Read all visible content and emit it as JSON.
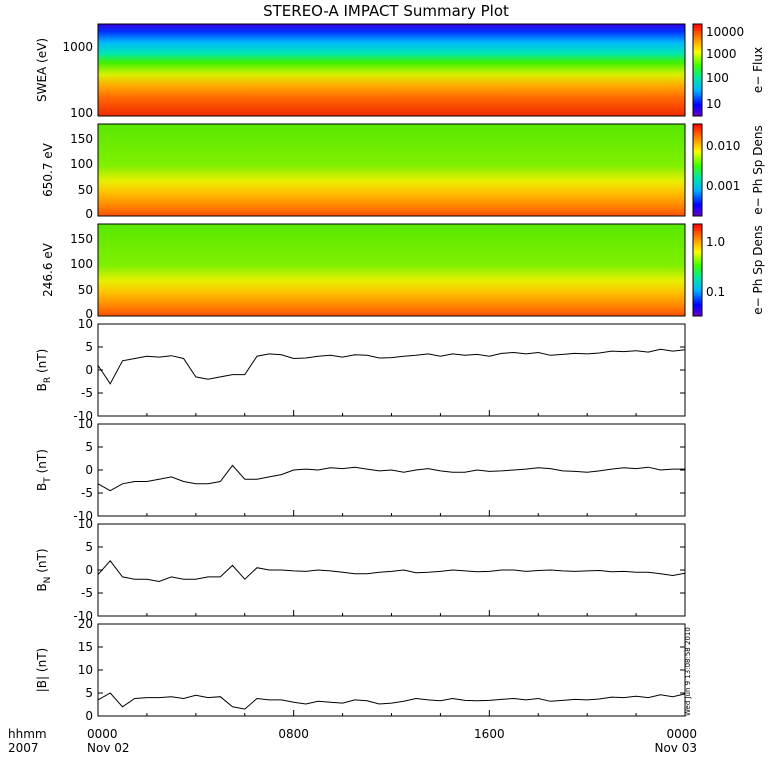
{
  "title": "STEREO-A IMPACT Summary Plot",
  "timestamp": "Wed Jun  9 13:08:58 2010",
  "footer": {
    "units_label": "hhmm",
    "year_label": "2007",
    "x_ticks": [
      {
        "label": "0000",
        "date": "Nov 02",
        "hours": 0
      },
      {
        "label": "0800",
        "date": "",
        "hours": 8
      },
      {
        "label": "1600",
        "date": "",
        "hours": 16
      },
      {
        "label": "0000",
        "date": "Nov 03",
        "hours": 24
      }
    ]
  },
  "colorbars": [
    {
      "label": "e− Flux",
      "ticks": [
        "10000",
        "1000",
        "100",
        "10"
      ]
    },
    {
      "label": "e− Ph Sp Dens",
      "ticks": [
        "0.010",
        "0.001"
      ]
    },
    {
      "label": "e− Ph Sp Dens",
      "ticks": [
        "1.0",
        "0.1"
      ]
    }
  ],
  "spectrograms": [
    {
      "ylabel": "SWEA (eV)",
      "yticks": [
        "1000",
        "100"
      ],
      "scale": "log"
    },
    {
      "ylabel": "650.7 eV",
      "yticks": [
        "150",
        "100",
        "50",
        "0"
      ],
      "ylim": [
        0,
        180
      ]
    },
    {
      "ylabel": "246.6 eV",
      "yticks": [
        "150",
        "100",
        "50",
        "0"
      ],
      "ylim": [
        0,
        180
      ]
    }
  ],
  "chart_data": [
    {
      "type": "line",
      "ylabel": "B",
      "ylabel_sub": "R",
      "ylabel_unit": "(nT)",
      "ylim": [
        -10,
        10
      ],
      "yticks": [
        10,
        5,
        0,
        -5,
        -10
      ],
      "x": [
        0,
        0.5,
        1,
        1.5,
        2,
        2.5,
        3,
        3.5,
        4,
        4.5,
        5,
        5.5,
        6,
        6.5,
        7,
        7.5,
        8,
        8.5,
        9,
        9.5,
        10,
        10.5,
        11,
        11.5,
        12,
        12.5,
        13,
        13.5,
        14,
        14.5,
        15,
        15.5,
        16,
        16.5,
        17,
        17.5,
        18,
        18.5,
        19,
        19.5,
        20,
        20.5,
        21,
        21.5,
        22,
        22.5,
        23,
        23.5,
        24
      ],
      "y": [
        1,
        -3,
        2,
        2.5,
        3,
        2.8,
        3.1,
        2.5,
        -1.5,
        -2,
        -1.5,
        -1,
        -1,
        3,
        3.5,
        3.3,
        2.5,
        2.6,
        3,
        3.2,
        2.8,
        3.3,
        3.2,
        2.6,
        2.7,
        3,
        3.2,
        3.5,
        3,
        3.5,
        3.2,
        3.4,
        3,
        3.6,
        3.8,
        3.5,
        3.8,
        3.2,
        3.4,
        3.6,
        3.5,
        3.7,
        4.1,
        4,
        4.2,
        3.9,
        4.5,
        4.1,
        4.4
      ]
    },
    {
      "type": "line",
      "ylabel": "B",
      "ylabel_sub": "T",
      "ylabel_unit": "(nT)",
      "ylim": [
        -10,
        10
      ],
      "yticks": [
        10,
        5,
        0,
        -5,
        -10
      ],
      "x": [
        0,
        0.5,
        1,
        1.5,
        2,
        2.5,
        3,
        3.5,
        4,
        4.5,
        5,
        5.5,
        6,
        6.5,
        7,
        7.5,
        8,
        8.5,
        9,
        9.5,
        10,
        10.5,
        11,
        11.5,
        12,
        12.5,
        13,
        13.5,
        14,
        14.5,
        15,
        15.5,
        16,
        16.5,
        17,
        17.5,
        18,
        18.5,
        19,
        19.5,
        20,
        20.5,
        21,
        21.5,
        22,
        22.5,
        23,
        23.5,
        24
      ],
      "y": [
        -3,
        -4.5,
        -3,
        -2.5,
        -2.5,
        -2,
        -1.5,
        -2.5,
        -3,
        -3,
        -2.5,
        1,
        -2,
        -2,
        -1.5,
        -1,
        0,
        0.2,
        0,
        0.5,
        0.3,
        0.6,
        0.2,
        -0.2,
        0,
        -0.5,
        0,
        0.3,
        -0.2,
        -0.5,
        -0.5,
        0,
        -0.3,
        -0.2,
        0,
        0.2,
        0.5,
        0.3,
        -0.2,
        -0.3,
        -0.5,
        -0.2,
        0.2,
        0.5,
        0.3,
        0.6,
        0,
        0.2,
        0.2
      ]
    },
    {
      "type": "line",
      "ylabel": "B",
      "ylabel_sub": "N",
      "ylabel_unit": "(nT)",
      "ylim": [
        -10,
        10
      ],
      "yticks": [
        10,
        5,
        0,
        -5,
        -10
      ],
      "x": [
        0,
        0.5,
        1,
        1.5,
        2,
        2.5,
        3,
        3.5,
        4,
        4.5,
        5,
        5.5,
        6,
        6.5,
        7,
        7.5,
        8,
        8.5,
        9,
        9.5,
        10,
        10.5,
        11,
        11.5,
        12,
        12.5,
        13,
        13.5,
        14,
        14.5,
        15,
        15.5,
        16,
        16.5,
        17,
        17.5,
        18,
        18.5,
        19,
        19.5,
        20,
        20.5,
        21,
        21.5,
        22,
        22.5,
        23,
        23.5,
        24
      ],
      "y": [
        -1,
        2,
        -1.5,
        -2,
        -2,
        -2.5,
        -1.5,
        -2,
        -2,
        -1.5,
        -1.5,
        1,
        -2,
        0.5,
        0,
        0,
        -0.2,
        -0.3,
        0,
        -0.2,
        -0.5,
        -0.8,
        -0.8,
        -0.5,
        -0.3,
        0,
        -0.6,
        -0.5,
        -0.3,
        0,
        -0.2,
        -0.4,
        -0.3,
        0,
        0,
        -0.3,
        -0.1,
        0,
        -0.2,
        -0.3,
        -0.2,
        -0.1,
        -0.4,
        -0.3,
        -0.5,
        -0.5,
        -0.8,
        -1.2,
        -0.7
      ]
    },
    {
      "type": "line",
      "ylabel": "|B|",
      "ylabel_sub": "",
      "ylabel_unit": "(nT)",
      "ylim": [
        0,
        20
      ],
      "yticks": [
        20,
        15,
        10,
        5,
        0
      ],
      "x": [
        0,
        0.5,
        1,
        1.5,
        2,
        2.5,
        3,
        3.5,
        4,
        4.5,
        5,
        5.5,
        6,
        6.5,
        7,
        7.5,
        8,
        8.5,
        9,
        9.5,
        10,
        10.5,
        11,
        11.5,
        12,
        12.5,
        13,
        13.5,
        14,
        14.5,
        15,
        15.5,
        16,
        16.5,
        17,
        17.5,
        18,
        18.5,
        19,
        19.5,
        20,
        20.5,
        21,
        21.5,
        22,
        22.5,
        23,
        23.5,
        24
      ],
      "y": [
        3.5,
        5,
        2,
        3.8,
        4,
        4,
        4.2,
        3.8,
        4.5,
        4,
        4.2,
        2,
        1.5,
        3.8,
        3.5,
        3.5,
        3,
        2.6,
        3.2,
        3,
        2.8,
        3.5,
        3.3,
        2.6,
        2.8,
        3.2,
        3.8,
        3.5,
        3.3,
        3.8,
        3.4,
        3.3,
        3.4,
        3.6,
        3.8,
        3.5,
        3.8,
        3.2,
        3.4,
        3.6,
        3.5,
        3.7,
        4.1,
        4,
        4.3,
        4,
        4.6,
        4.2,
        4.8
      ]
    }
  ]
}
